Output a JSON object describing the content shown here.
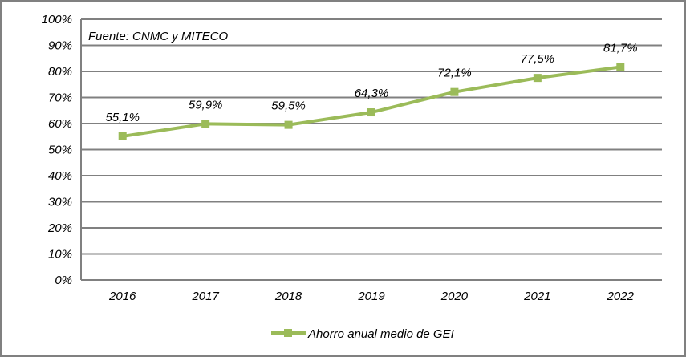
{
  "chart_data": {
    "type": "line",
    "title": "",
    "annotation": "Fuente: CNMC y MITECO",
    "categories": [
      "2016",
      "2017",
      "2018",
      "2019",
      "2020",
      "2021",
      "2022"
    ],
    "series": [
      {
        "name": "Ahorro anual medio de GEI",
        "values": [
          55.1,
          59.9,
          59.5,
          64.3,
          72.1,
          77.5,
          81.7
        ],
        "labels": [
          "55,1%",
          "59,9%",
          "59,5%",
          "64,3%",
          "72,1%",
          "77,5%",
          "81,7%"
        ],
        "color": "#9BBB59"
      }
    ],
    "xlabel": "",
    "ylabel": "",
    "ylim": [
      0,
      100
    ],
    "yticks": [
      0,
      10,
      20,
      30,
      40,
      50,
      60,
      70,
      80,
      90,
      100
    ],
    "ytick_labels": [
      "0%",
      "10%",
      "20%",
      "30%",
      "40%",
      "50%",
      "60%",
      "70%",
      "80%",
      "90%",
      "100%"
    ],
    "grid": true,
    "legend": "bottom"
  }
}
